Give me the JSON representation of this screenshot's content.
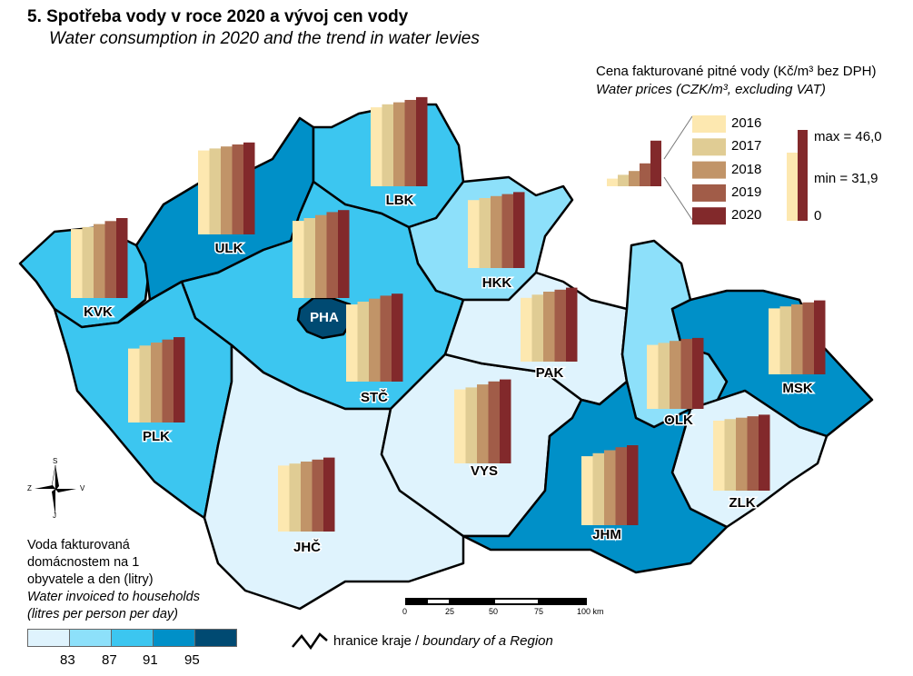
{
  "title": "5. Spotřeba vody v roce 2020 a vývoj cen vody",
  "subtitle": "Water consumption in 2020 and the trend in water levies",
  "price_legend": {
    "title_cz": "Cena fakturované pitné vody (Kč/m³ bez DPH)",
    "title_en": "Water prices (CZK/m³, excluding VAT)",
    "years": [
      "2016",
      "2017",
      "2018",
      "2019",
      "2020"
    ],
    "year_colors": [
      "#fde8b0",
      "#e0cc94",
      "#c19468",
      "#a15c48",
      "#82292b"
    ],
    "max_label": "max = 46,0",
    "min_label": "min = 31,9",
    "zero_label": "0",
    "max": 46.0,
    "min": 31.9
  },
  "consumption_legend": {
    "title_cz_lines": [
      "Voda fakturovaná",
      "domácnostem na 1",
      "obyvatele a den (litry)"
    ],
    "title_en_lines": [
      "Water invoiced to households",
      "(litres per person per day)"
    ],
    "class_colors": [
      "#dff3fd",
      "#8de0fa",
      "#3cc6f0",
      "#0090c8",
      "#004a72"
    ],
    "breaks": [
      "83",
      "87",
      "91",
      "95"
    ]
  },
  "compass": {
    "n": "S",
    "s": "J",
    "w": "Z",
    "e": "V"
  },
  "scale_bar": {
    "ticks": [
      "0",
      "25",
      "50",
      "75",
      "100 km"
    ]
  },
  "boundary_legend": {
    "cz": "hranice kraje",
    "sep": " / ",
    "en": "boundary of a Region"
  },
  "regions": [
    {
      "code": "KVK",
      "class": 2,
      "prices": [
        34.5,
        35.5,
        37,
        38.5,
        40
      ]
    },
    {
      "code": "ULK",
      "class": 3,
      "prices": [
        42,
        43,
        44,
        45,
        46.0
      ]
    },
    {
      "code": "LBK",
      "class": 2,
      "prices": [
        39.5,
        41,
        42,
        43.2,
        44.6
      ]
    },
    {
      "code": "HKK",
      "class": 1,
      "prices": [
        34,
        35,
        36,
        37,
        38
      ]
    },
    {
      "code": "PHA",
      "class": 4,
      "prices": [
        38.6,
        40,
        41.5,
        43,
        44
      ]
    },
    {
      "code": "STČ",
      "class": 2,
      "prices": [
        38.6,
        40,
        41.5,
        43,
        44
      ]
    },
    {
      "code": "PLK",
      "class": 2,
      "prices": [
        37,
        38.5,
        40,
        41.5,
        42.7
      ]
    },
    {
      "code": "JHČ",
      "class": 0,
      "prices": [
        33,
        34,
        35,
        36,
        37
      ]
    },
    {
      "code": "VYS",
      "class": 0,
      "prices": [
        37,
        38,
        39.5,
        41,
        42
      ]
    },
    {
      "code": "PAK",
      "class": 0,
      "prices": [
        31.9,
        33.5,
        35,
        36,
        37
      ]
    },
    {
      "code": "OLK",
      "class": 1,
      "prices": [
        32,
        33,
        34,
        35,
        35.5
      ]
    },
    {
      "code": "MSK",
      "class": 3,
      "prices": [
        33,
        34,
        35,
        36,
        37
      ]
    },
    {
      "code": "ZLK",
      "class": 0,
      "prices": [
        35,
        35.8,
        36.5,
        37.2,
        38
      ]
    },
    {
      "code": "JHM",
      "class": 3,
      "prices": [
        34.5,
        36,
        37.5,
        39,
        40
      ]
    }
  ]
}
